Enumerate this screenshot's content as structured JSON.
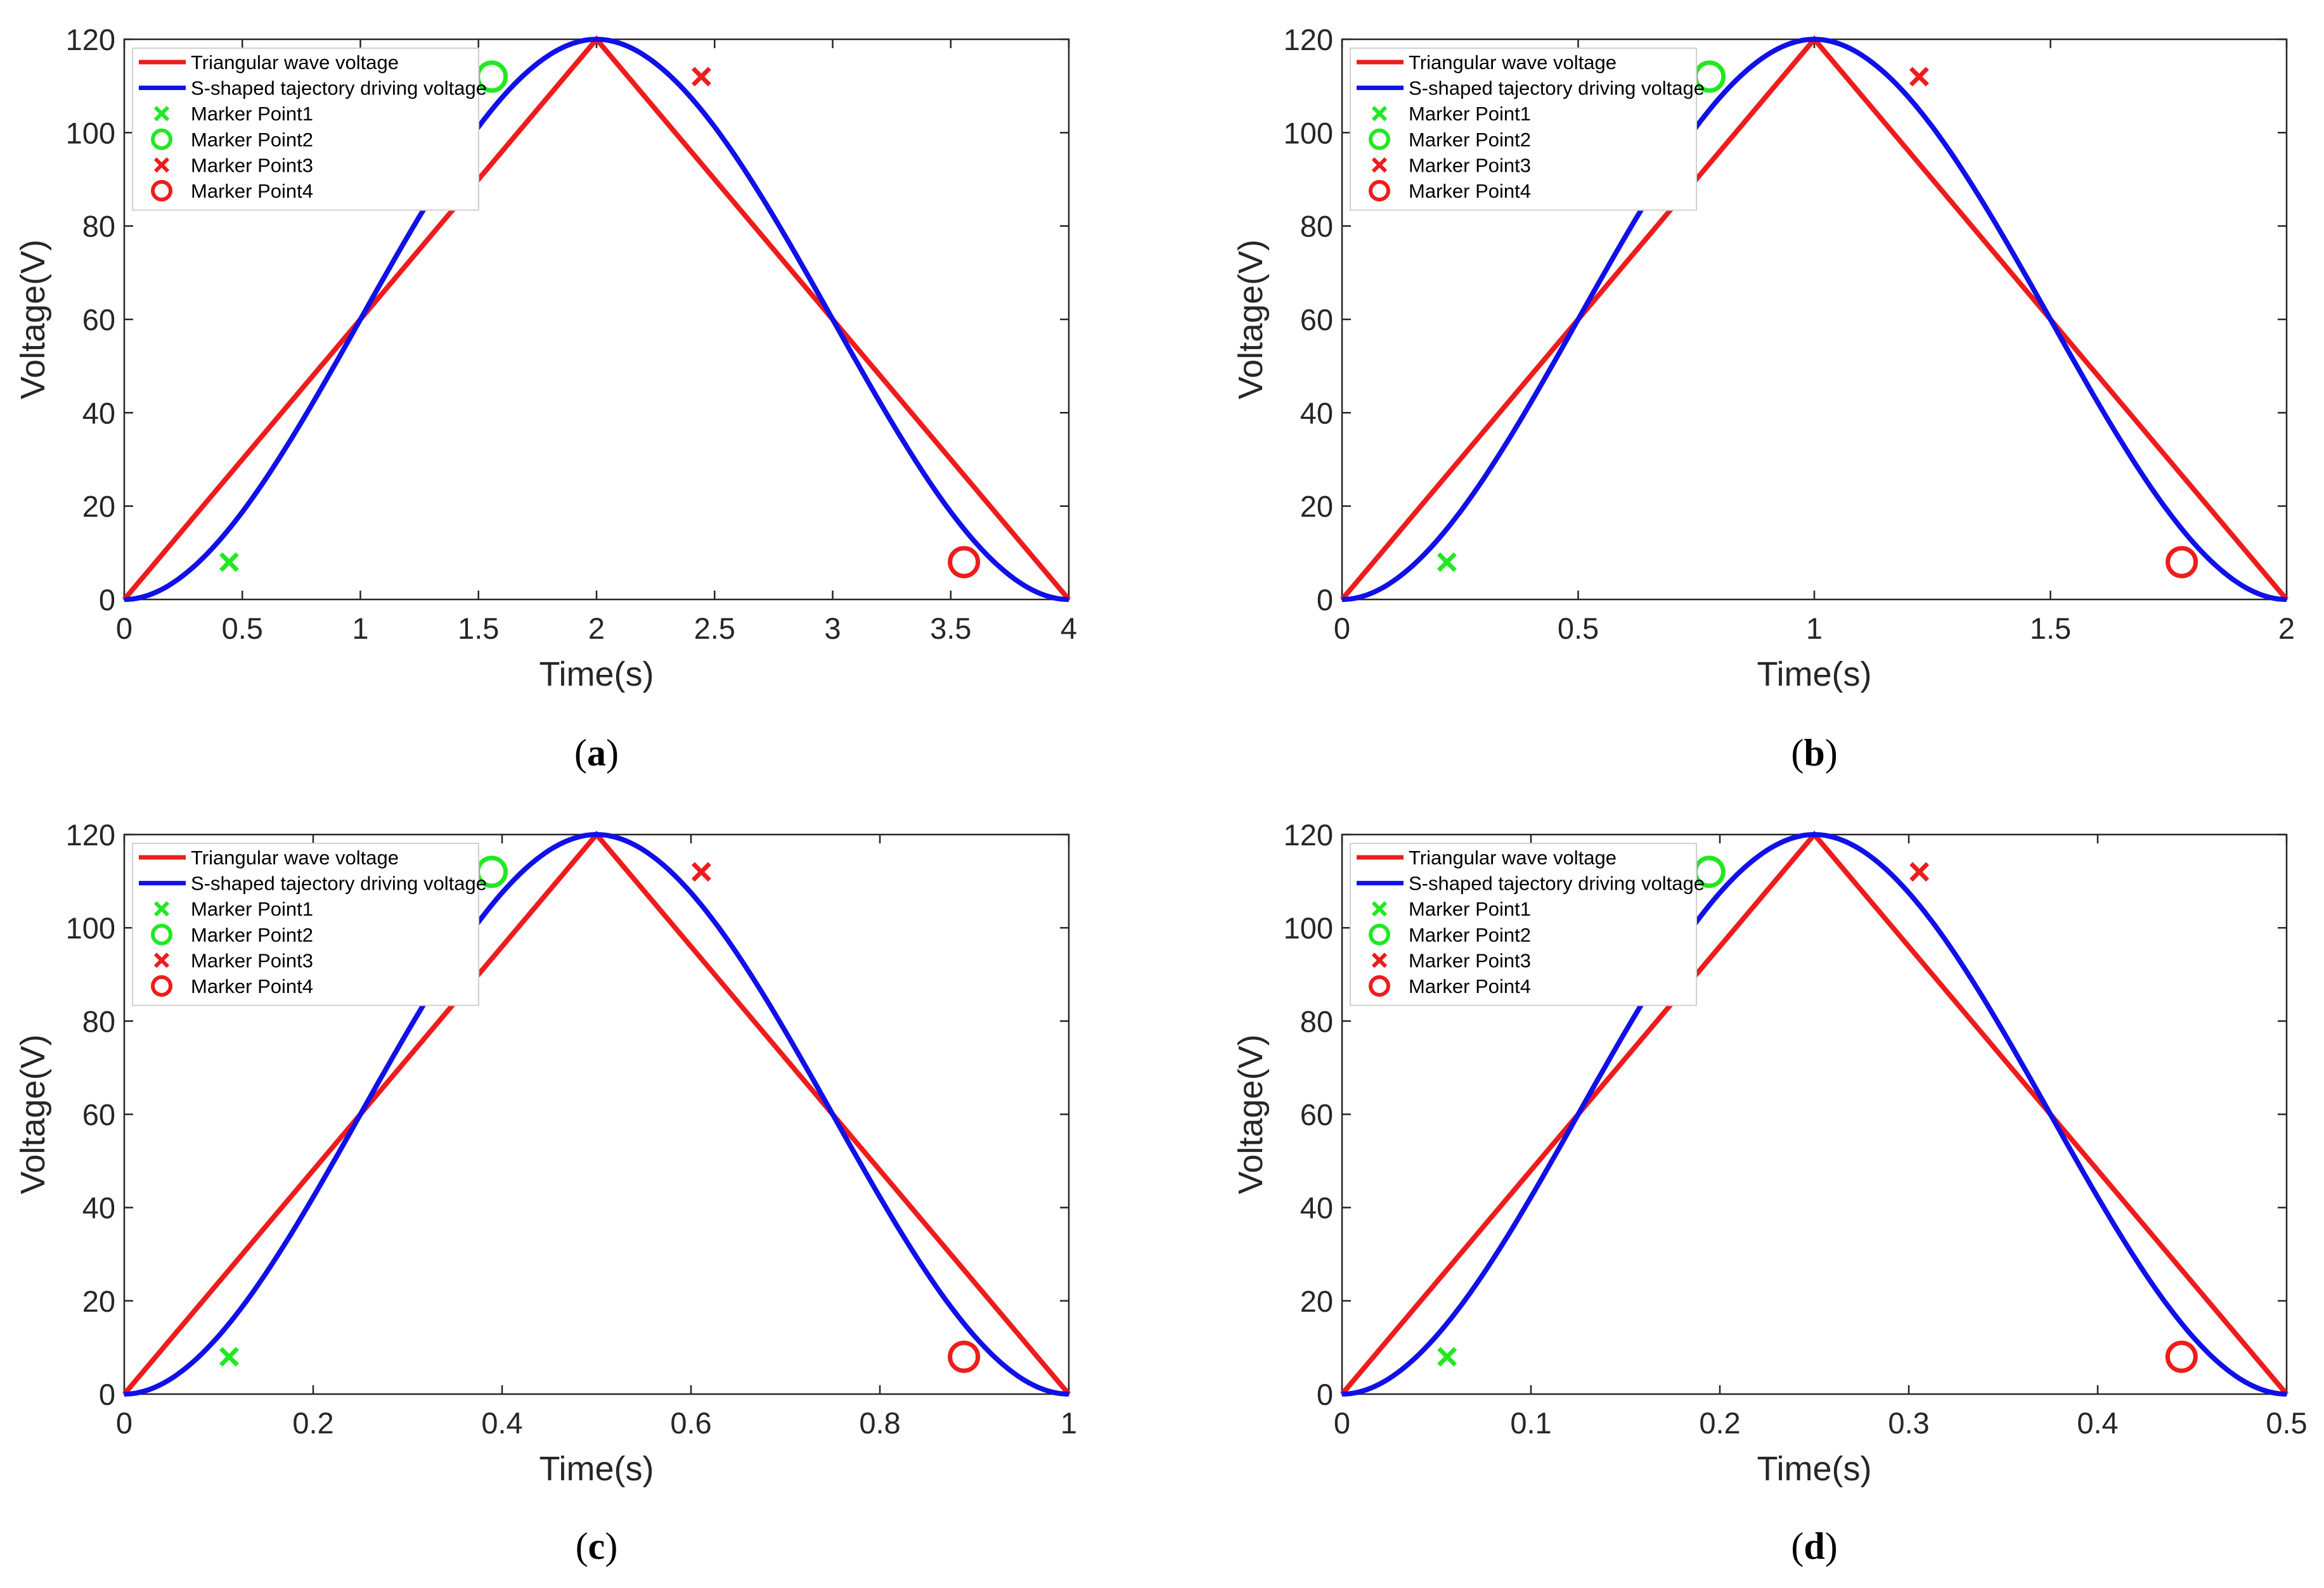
{
  "chart_data": [
    {
      "type": "line",
      "caption": "a",
      "xlabel": "Time(s)",
      "ylabel": "Voltage(V)",
      "xlim": [
        0,
        4
      ],
      "ylim": [
        0,
        120
      ],
      "xticks": [
        0,
        0.5,
        1,
        1.5,
        2,
        2.5,
        3,
        3.5,
        4
      ],
      "xtick_labels": [
        "0",
        "0.5",
        "1",
        "1.5",
        "2",
        "2.5",
        "3",
        "3.5",
        "4"
      ],
      "yticks": [
        0,
        20,
        40,
        60,
        80,
        100,
        120
      ],
      "ytick_labels": [
        "0",
        "20",
        "40",
        "60",
        "80",
        "100",
        "120"
      ],
      "series": [
        {
          "name": "Triangular wave voltage",
          "color": "#ee1c1c",
          "x": [
            0,
            2,
            4
          ],
          "y": [
            0,
            120,
            0
          ]
        },
        {
          "name": "S-shaped tajectory driving voltage",
          "color": "#1010e8",
          "shape": "s-curve",
          "x_start": 0,
          "x_peak": 2,
          "x_end": 4,
          "y_max": 120
        }
      ],
      "markers": [
        {
          "name": "Marker Point1",
          "symbol": "x",
          "color": "#22e822",
          "x": 0.444,
          "y": 8
        },
        {
          "name": "Marker Point2",
          "symbol": "o",
          "color": "#22e822",
          "x": 1.556,
          "y": 112
        },
        {
          "name": "Marker Point3",
          "symbol": "x",
          "color": "#ee1c1c",
          "x": 2.444,
          "y": 112
        },
        {
          "name": "Marker Point4",
          "symbol": "o",
          "color": "#ee1c1c",
          "x": 3.556,
          "y": 8
        }
      ],
      "legend_position": "top-left",
      "grid": false
    },
    {
      "type": "line",
      "caption": "b",
      "xlabel": "Time(s)",
      "ylabel": "Voltage(V)",
      "xlim": [
        0,
        2
      ],
      "ylim": [
        0,
        120
      ],
      "xticks": [
        0,
        0.5,
        1,
        1.5,
        2
      ],
      "xtick_labels": [
        "0",
        "0.5",
        "1",
        "1.5",
        "2"
      ],
      "yticks": [
        0,
        20,
        40,
        60,
        80,
        100,
        120
      ],
      "ytick_labels": [
        "0",
        "20",
        "40",
        "60",
        "80",
        "100",
        "120"
      ],
      "series": [
        {
          "name": "Triangular wave voltage",
          "color": "#ee1c1c",
          "x": [
            0,
            1,
            2
          ],
          "y": [
            0,
            120,
            0
          ]
        },
        {
          "name": "S-shaped tajectory driving voltage",
          "color": "#1010e8",
          "shape": "s-curve",
          "x_start": 0,
          "x_peak": 1,
          "x_end": 2,
          "y_max": 120
        }
      ],
      "markers": [
        {
          "name": "Marker Point1",
          "symbol": "x",
          "color": "#22e822",
          "x": 0.222,
          "y": 8
        },
        {
          "name": "Marker Point2",
          "symbol": "o",
          "color": "#22e822",
          "x": 0.778,
          "y": 112
        },
        {
          "name": "Marker Point3",
          "symbol": "x",
          "color": "#ee1c1c",
          "x": 1.222,
          "y": 112
        },
        {
          "name": "Marker Point4",
          "symbol": "o",
          "color": "#ee1c1c",
          "x": 1.778,
          "y": 8
        }
      ],
      "legend_position": "top-left",
      "grid": false
    },
    {
      "type": "line",
      "caption": "c",
      "xlabel": "Time(s)",
      "ylabel": "Voltage(V)",
      "xlim": [
        0,
        1
      ],
      "ylim": [
        0,
        120
      ],
      "xticks": [
        0,
        0.2,
        0.4,
        0.6,
        0.8,
        1
      ],
      "xtick_labels": [
        "0",
        "0.2",
        "0.4",
        "0.6",
        "0.8",
        "1"
      ],
      "yticks": [
        0,
        20,
        40,
        60,
        80,
        100,
        120
      ],
      "ytick_labels": [
        "0",
        "20",
        "40",
        "60",
        "80",
        "100",
        "120"
      ],
      "series": [
        {
          "name": "Triangular wave voltage",
          "color": "#ee1c1c",
          "x": [
            0,
            0.5,
            1
          ],
          "y": [
            0,
            120,
            0
          ]
        },
        {
          "name": "S-shaped tajectory driving voltage",
          "color": "#1010e8",
          "shape": "s-curve",
          "x_start": 0,
          "x_peak": 0.5,
          "x_end": 1,
          "y_max": 120
        }
      ],
      "markers": [
        {
          "name": "Marker Point1",
          "symbol": "x",
          "color": "#22e822",
          "x": 0.111,
          "y": 8
        },
        {
          "name": "Marker Point2",
          "symbol": "o",
          "color": "#22e822",
          "x": 0.389,
          "y": 112
        },
        {
          "name": "Marker Point3",
          "symbol": "x",
          "color": "#ee1c1c",
          "x": 0.611,
          "y": 112
        },
        {
          "name": "Marker Point4",
          "symbol": "o",
          "color": "#ee1c1c",
          "x": 0.889,
          "y": 8
        }
      ],
      "legend_position": "top-left",
      "grid": false
    },
    {
      "type": "line",
      "caption": "d",
      "xlabel": "Time(s)",
      "ylabel": "Voltage(V)",
      "xlim": [
        0,
        0.5
      ],
      "ylim": [
        0,
        120
      ],
      "xticks": [
        0,
        0.1,
        0.2,
        0.3,
        0.4,
        0.5
      ],
      "xtick_labels": [
        "0",
        "0.1",
        "0.2",
        "0.3",
        "0.4",
        "0.5"
      ],
      "yticks": [
        0,
        20,
        40,
        60,
        80,
        100,
        120
      ],
      "ytick_labels": [
        "0",
        "20",
        "40",
        "60",
        "80",
        "100",
        "120"
      ],
      "series": [
        {
          "name": "Triangular wave voltage",
          "color": "#ee1c1c",
          "x": [
            0,
            0.25,
            0.5
          ],
          "y": [
            0,
            120,
            0
          ]
        },
        {
          "name": "S-shaped tajectory driving voltage",
          "color": "#1010e8",
          "shape": "s-curve",
          "x_start": 0,
          "x_peak": 0.25,
          "x_end": 0.5,
          "y_max": 120
        }
      ],
      "markers": [
        {
          "name": "Marker Point1",
          "symbol": "x",
          "color": "#22e822",
          "x": 0.0556,
          "y": 8
        },
        {
          "name": "Marker Point2",
          "symbol": "o",
          "color": "#22e822",
          "x": 0.1944,
          "y": 112
        },
        {
          "name": "Marker Point3",
          "symbol": "x",
          "color": "#ee1c1c",
          "x": 0.3056,
          "y": 112
        },
        {
          "name": "Marker Point4",
          "symbol": "o",
          "color": "#ee1c1c",
          "x": 0.4444,
          "y": 8
        }
      ],
      "legend_position": "top-left",
      "grid": false
    }
  ]
}
